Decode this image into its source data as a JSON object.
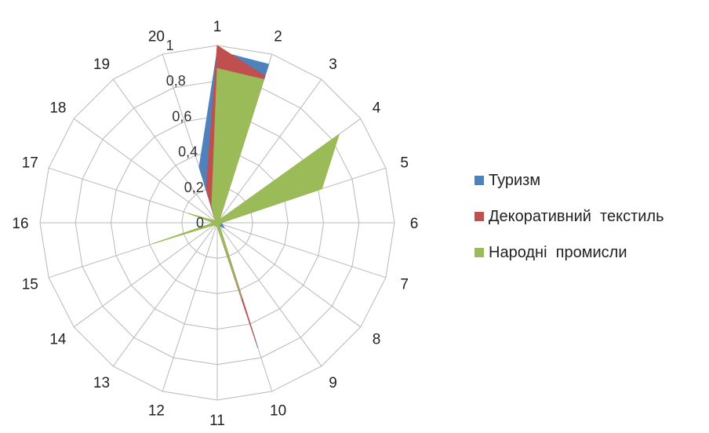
{
  "chart_data": {
    "type": "radar",
    "title": "",
    "categories": [
      "1",
      "2",
      "3",
      "4",
      "5",
      "6",
      "7",
      "8",
      "9",
      "10",
      "11",
      "12",
      "13",
      "14",
      "15",
      "16",
      "17",
      "18",
      "19",
      "20"
    ],
    "radial_ticks": [
      "0",
      "0,2",
      "0,4",
      "0,6",
      "0,8",
      "1"
    ],
    "rlim": [
      0,
      1
    ],
    "grid": true,
    "legend_position": "right",
    "series": [
      {
        "name": "Туризм",
        "color": "#4F81BD",
        "values": [
          0.97,
          0.94,
          0.02,
          0.02,
          0.6,
          0.02,
          0.03,
          0.05,
          0.02,
          0.74,
          0.02,
          0.02,
          0.02,
          0.02,
          0.02,
          0.02,
          0.02,
          0.02,
          0.02,
          0.33
        ]
      },
      {
        "name": "Декоративний текстиль",
        "color": "#C0504D",
        "values": [
          1.0,
          0.87,
          0.02,
          0.02,
          0.6,
          0.02,
          0.02,
          0.02,
          0.02,
          0.7,
          0.02,
          0.02,
          0.02,
          0.02,
          0.02,
          0.02,
          0.02,
          0.02,
          0.02,
          0.2
        ]
      },
      {
        "name": "Народні промисли",
        "color": "#9BBB59",
        "values": [
          0.87,
          0.85,
          0.02,
          0.85,
          0.62,
          0.02,
          0.02,
          0.02,
          0.02,
          0.45,
          0.02,
          0.02,
          0.02,
          0.02,
          0.38,
          0.02,
          0.17,
          0.02,
          0.02,
          0.1
        ]
      }
    ]
  }
}
